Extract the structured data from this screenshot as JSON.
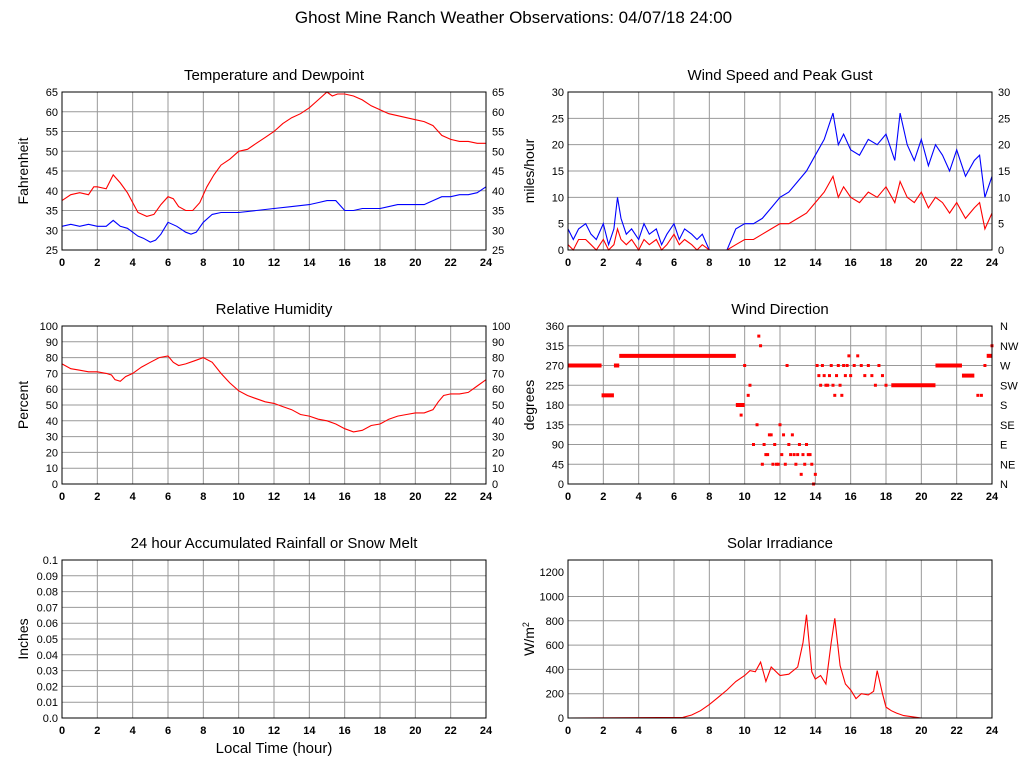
{
  "page": {
    "title": "Ghost Mine Ranch Weather Observations: 04/07/18 24:00",
    "x_axis_label": "Local Time (hour)"
  },
  "colors": {
    "red": "#ff0000",
    "blue": "#0000ff",
    "grid": "#999999"
  },
  "chart_data": [
    {
      "id": "temperature",
      "type": "line",
      "title": "Temperature and Dewpoint",
      "ylabel": "Fahrenheit",
      "xlim": [
        0,
        24
      ],
      "ylim": [
        25,
        65
      ],
      "ystep": 5,
      "right_axis": true,
      "grid": true,
      "series": [
        {
          "color": "#ff0000",
          "x": [
            0,
            0.5,
            1,
            1.5,
            1.8,
            2,
            2.5,
            2.9,
            3.3,
            3.7,
            4,
            4.3,
            4.8,
            5.2,
            5.6,
            6,
            6.3,
            6.6,
            7,
            7.4,
            7.8,
            8.2,
            8.6,
            9,
            9.5,
            10,
            10.5,
            11,
            11.5,
            12,
            12.5,
            13,
            13.5,
            14,
            14.5,
            15,
            15.3,
            15.6,
            16,
            16.5,
            17,
            17.5,
            18,
            18.5,
            19,
            19.5,
            20,
            20.5,
            21,
            21.5,
            22,
            22.5,
            23,
            23.5,
            24
          ],
          "y": [
            37.5,
            39,
            39.5,
            39,
            41,
            41,
            40.5,
            44,
            42,
            39.5,
            37,
            34.5,
            33.5,
            34,
            36.5,
            38.5,
            38,
            36,
            35,
            35,
            37,
            41,
            44,
            46.5,
            48,
            50,
            50.5,
            52,
            53.5,
            55,
            57,
            58.5,
            59.5,
            61,
            63,
            65,
            64,
            64.5,
            64.5,
            64,
            63,
            61.5,
            60.5,
            59.5,
            59,
            58.5,
            58,
            57.5,
            56.5,
            54,
            53,
            52.5,
            52.5,
            52,
            52
          ]
        },
        {
          "color": "#0000ff",
          "x": [
            0,
            0.5,
            1,
            1.5,
            2,
            2.5,
            2.9,
            3.3,
            3.7,
            4,
            4.3,
            4.6,
            5,
            5.3,
            5.6,
            6,
            6.5,
            7,
            7.3,
            7.6,
            8,
            8.5,
            9,
            10,
            11,
            12,
            13,
            14,
            14.5,
            15,
            15.5,
            16,
            16.5,
            17,
            18,
            19,
            20,
            20.5,
            21,
            21.5,
            22,
            22.5,
            23,
            23.5,
            24
          ],
          "y": [
            31,
            31.5,
            31,
            31.5,
            31,
            31,
            32.5,
            31,
            30.5,
            29.5,
            28.5,
            28,
            27,
            27.5,
            29,
            32,
            31,
            29.5,
            29,
            29.5,
            32,
            34,
            34.5,
            34.5,
            35,
            35.5,
            36,
            36.5,
            37,
            37.5,
            37.5,
            35,
            35,
            35.5,
            35.5,
            36.5,
            36.5,
            36.5,
            37.5,
            38.5,
            38.5,
            39,
            39,
            39.5,
            41
          ]
        }
      ]
    },
    {
      "id": "wind_speed",
      "type": "line",
      "title": "Wind Speed and Peak Gust",
      "ylabel": "miles/hour",
      "xlim": [
        0,
        24
      ],
      "ylim": [
        0,
        30
      ],
      "ystep": 5,
      "right_axis": true,
      "grid": true,
      "series": [
        {
          "color": "#0000ff",
          "x": [
            0,
            0.3,
            0.6,
            1,
            1.3,
            1.6,
            2,
            2.3,
            2.6,
            2.8,
            3,
            3.3,
            3.6,
            4,
            4.3,
            4.6,
            5,
            5.3,
            5.6,
            6,
            6.3,
            6.6,
            7,
            7.3,
            7.6,
            8,
            8.5,
            9,
            9.5,
            10,
            10.5,
            11,
            11.5,
            12,
            12.5,
            13,
            13.5,
            14,
            14.5,
            15,
            15.3,
            15.6,
            16,
            16.5,
            17,
            17.5,
            18,
            18.5,
            18.8,
            19.2,
            19.6,
            20,
            20.4,
            20.8,
            21.2,
            21.6,
            22,
            22.5,
            23,
            23.3,
            23.6,
            24
          ],
          "y": [
            4,
            2,
            4,
            5,
            3,
            2,
            5,
            1,
            4,
            10,
            6,
            3,
            4,
            2,
            5,
            3,
            4,
            1,
            3,
            5,
            2,
            4,
            3,
            2,
            3,
            0,
            0,
            0,
            4,
            5,
            5,
            6,
            8,
            10,
            11,
            13,
            15,
            18,
            21,
            26,
            20,
            22,
            19,
            18,
            21,
            20,
            22,
            17,
            26,
            20,
            17,
            21,
            16,
            20,
            18,
            15,
            19,
            14,
            17,
            18,
            10,
            14
          ]
        },
        {
          "color": "#ff0000",
          "x": [
            0,
            0.3,
            0.6,
            1,
            1.3,
            1.6,
            2,
            2.3,
            2.6,
            2.8,
            3,
            3.3,
            3.6,
            4,
            4.3,
            4.6,
            5,
            5.3,
            5.6,
            6,
            6.3,
            6.6,
            7,
            7.3,
            7.6,
            8,
            8.5,
            9,
            9.5,
            10,
            10.5,
            11,
            11.5,
            12,
            12.5,
            13,
            13.5,
            14,
            14.5,
            15,
            15.3,
            15.6,
            16,
            16.5,
            17,
            17.5,
            18,
            18.5,
            18.8,
            19.2,
            19.6,
            20,
            20.4,
            20.8,
            21.2,
            21.6,
            22,
            22.5,
            23,
            23.3,
            23.6,
            24
          ],
          "y": [
            1,
            0,
            2,
            2,
            1,
            0,
            2,
            0,
            1,
            4,
            2,
            1,
            2,
            0,
            2,
            1,
            2,
            0,
            1,
            3,
            1,
            2,
            1,
            0,
            1,
            0,
            0,
            0,
            1,
            2,
            2,
            3,
            4,
            5,
            5,
            6,
            7,
            9,
            11,
            14,
            10,
            12,
            10,
            9,
            11,
            10,
            12,
            9,
            13,
            10,
            9,
            11,
            8,
            10,
            9,
            7,
            9,
            6,
            8,
            9,
            4,
            7
          ]
        }
      ]
    },
    {
      "id": "humidity",
      "type": "line",
      "title": "Relative Humidity",
      "ylabel": "Percent",
      "xlim": [
        0,
        24
      ],
      "ylim": [
        0,
        100
      ],
      "ystep": 10,
      "right_axis": true,
      "grid": true,
      "series": [
        {
          "color": "#ff0000",
          "x": [
            0,
            0.5,
            1,
            1.5,
            2,
            2.5,
            2.8,
            3,
            3.3,
            3.6,
            4,
            4.5,
            5,
            5.5,
            6,
            6.3,
            6.6,
            7,
            7.5,
            8,
            8.5,
            9,
            9.5,
            10,
            10.5,
            11,
            11.5,
            12,
            12.5,
            13,
            13.5,
            14,
            14.5,
            15,
            15.5,
            16,
            16.5,
            17,
            17.5,
            18,
            18.5,
            19,
            19.5,
            20,
            20.5,
            21,
            21.3,
            21.6,
            22,
            22.5,
            23,
            23.5,
            24
          ],
          "y": [
            76,
            73,
            72,
            71,
            71,
            70,
            69,
            66,
            65,
            68,
            70,
            74,
            77,
            80,
            81,
            77,
            75,
            76,
            78,
            80,
            77,
            70,
            64,
            59,
            56,
            54,
            52,
            51,
            49,
            47,
            44,
            43,
            41,
            40,
            38,
            35,
            33,
            34,
            37,
            38,
            41,
            43,
            44,
            45,
            45,
            47,
            52,
            56,
            57,
            57,
            58,
            62,
            66
          ]
        }
      ]
    },
    {
      "id": "wind_direction",
      "type": "scatter",
      "title": "Wind Direction",
      "ylabel": "degrees",
      "xlim": [
        0,
        24
      ],
      "ylim": [
        0,
        360
      ],
      "ystep": 45,
      "right_ticks": [
        "N",
        "NE",
        "E",
        "SE",
        "S",
        "SW",
        "W",
        "NW",
        "N"
      ],
      "grid": true,
      "series": [
        {
          "color": "#ff0000",
          "segments": [
            {
              "x0": 0,
              "x1": 1.9,
              "y": 270
            },
            {
              "x0": 1.9,
              "x1": 2.6,
              "y": 202
            },
            {
              "x0": 2.6,
              "x1": 2.9,
              "y": 270
            },
            {
              "x0": 2.9,
              "x1": 9.5,
              "y": 292
            },
            {
              "x0": 9.5,
              "x1": 10,
              "y": 180
            },
            {
              "x0": 18.3,
              "x1": 20.8,
              "y": 225
            },
            {
              "x0": 20.8,
              "x1": 22.3,
              "y": 270
            },
            {
              "x0": 22.3,
              "x1": 23,
              "y": 247
            },
            {
              "x0": 23.7,
              "x1": 24,
              "y": 292
            }
          ],
          "x": [
            9.8,
            10,
            10.2,
            10.3,
            10.5,
            10.7,
            10.8,
            10.9,
            11,
            11.1,
            11.2,
            11.3,
            11.4,
            11.5,
            11.6,
            11.7,
            11.8,
            11.9,
            12,
            12.1,
            12.2,
            12.3,
            12.4,
            12.5,
            12.6,
            12.7,
            12.8,
            12.9,
            13,
            13.1,
            13.2,
            13.3,
            13.4,
            13.5,
            13.6,
            13.7,
            13.8,
            13.9,
            14,
            14.1,
            14.2,
            14.3,
            14.4,
            14.5,
            14.6,
            14.7,
            14.8,
            14.9,
            15,
            15.1,
            15.2,
            15.3,
            15.4,
            15.5,
            15.6,
            15.7,
            15.8,
            15.9,
            16,
            16.2,
            16.4,
            16.6,
            16.8,
            17,
            17.2,
            17.4,
            17.6,
            17.8,
            18,
            23.2,
            23.4,
            23.6,
            24
          ],
          "y": [
            157,
            270,
            202,
            225,
            90,
            135,
            337,
            315,
            45,
            90,
            67,
            67,
            112,
            112,
            45,
            90,
            45,
            45,
            135,
            67,
            112,
            45,
            270,
            90,
            67,
            112,
            67,
            45,
            67,
            90,
            22,
            67,
            45,
            90,
            67,
            67,
            45,
            0,
            22,
            270,
            247,
            225,
            270,
            247,
            225,
            225,
            247,
            270,
            225,
            202,
            247,
            270,
            225,
            202,
            270,
            247,
            270,
            292,
            247,
            270,
            292,
            270,
            247,
            270,
            247,
            225,
            270,
            247,
            225,
            202,
            202,
            270,
            315
          ]
        }
      ]
    },
    {
      "id": "rainfall",
      "type": "line",
      "title": "24 hour Accumulated Rainfall or Snow Melt",
      "ylabel": "Inches",
      "xlim": [
        0,
        24
      ],
      "ylim": [
        0,
        0.1
      ],
      "ytick_labels": [
        "0.0",
        "0.01",
        "0.02",
        "0.03",
        "0.04",
        "0.05",
        "0.06",
        "0.07",
        "0.08",
        "0.09",
        "0.1"
      ],
      "right_axis": false,
      "grid": true,
      "series": [
        {
          "color": "#ff0000",
          "x": [
            0,
            24
          ],
          "y": [
            0,
            0
          ]
        }
      ]
    },
    {
      "id": "solar",
      "type": "line",
      "title": "Solar Irradiance",
      "ylabel": "W/m",
      "ylabel_sup": "2",
      "xlim": [
        0,
        24
      ],
      "ylim": [
        0,
        1300
      ],
      "ytick_values": [
        0,
        200,
        400,
        600,
        800,
        1000,
        1200
      ],
      "right_axis": false,
      "grid": true,
      "series": [
        {
          "color": "#ff0000",
          "x": [
            0,
            6.5,
            7,
            7.5,
            8,
            8.5,
            9,
            9.5,
            10,
            10.3,
            10.6,
            10.9,
            11.2,
            11.5,
            12,
            12.5,
            13,
            13.3,
            13.5,
            13.8,
            14,
            14.3,
            14.6,
            14.9,
            15.1,
            15.4,
            15.7,
            16,
            16.3,
            16.6,
            17,
            17.3,
            17.5,
            17.8,
            18,
            18.3,
            18.6,
            19,
            19.5,
            19.8,
            20,
            24
          ],
          "y": [
            0,
            5,
            25,
            60,
            110,
            170,
            230,
            300,
            350,
            390,
            380,
            460,
            300,
            420,
            350,
            360,
            420,
            620,
            850,
            380,
            320,
            350,
            280,
            620,
            820,
            430,
            280,
            230,
            160,
            200,
            190,
            220,
            390,
            200,
            90,
            60,
            40,
            20,
            10,
            4,
            0,
            0
          ]
        }
      ]
    }
  ]
}
